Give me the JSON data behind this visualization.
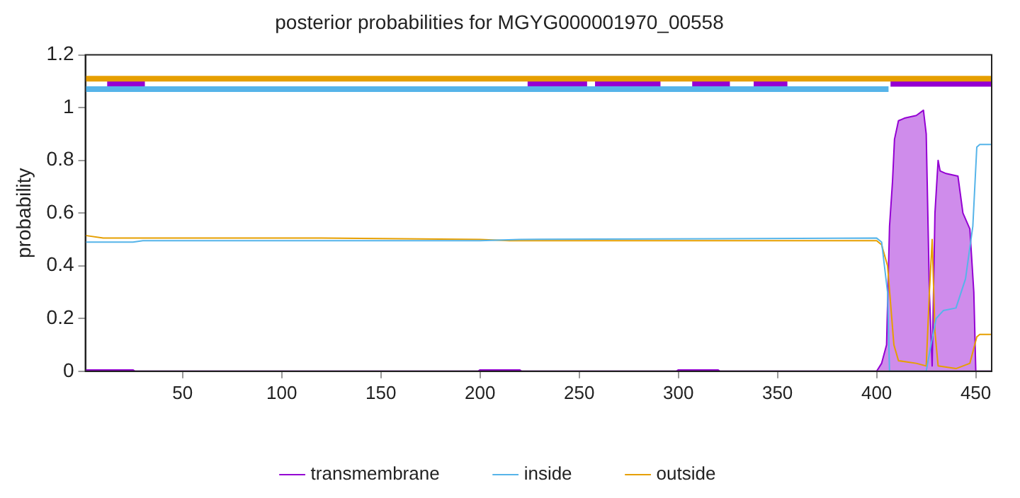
{
  "chart_data": {
    "type": "line",
    "title": "posterior probabilities for MGYG000001970_00558",
    "ylabel": "probability",
    "xlim": [
      1,
      458
    ],
    "xticks": [
      50,
      100,
      150,
      200,
      250,
      300,
      350,
      400,
      450
    ],
    "ylim": [
      0,
      1.2
    ],
    "yticks": [
      0,
      0.2,
      0.4,
      0.6,
      0.8,
      1,
      1.2
    ],
    "grid": false,
    "legend": "bottom",
    "marker": "none",
    "line_style": "solid",
    "series": [
      {
        "name": "transmembrane",
        "type": "area",
        "color": "#9400d3",
        "x": [
          1,
          25,
          26,
          199,
          200,
          220,
          221,
          299,
          300,
          320,
          321,
          400,
          402.5,
          405,
          406.5,
          408,
          409,
          411,
          414,
          420,
          423.6,
          425,
          426.6,
          428,
          429.4,
          431,
          432,
          435,
          441,
          443.5,
          447,
          449,
          450,
          458
        ],
        "values": [
          0.005,
          0.005,
          0,
          0,
          0.005,
          0.005,
          0,
          0,
          0.005,
          0.005,
          0,
          0,
          0.03,
          0.1,
          0.55,
          0.72,
          0.88,
          0.95,
          0.96,
          0.97,
          0.99,
          0.9,
          0.3,
          0.02,
          0.6,
          0.8,
          0.76,
          0.75,
          0.74,
          0.6,
          0.54,
          0.3,
          0,
          0
        ]
      },
      {
        "name": "inside",
        "color": "#56b4e9",
        "x": [
          1,
          25,
          30,
          200,
          220,
          400,
          402.5,
          405.5,
          406.5,
          425,
          427.4,
          430,
          433.6,
          440,
          444.8,
          448.5,
          450.5,
          452,
          458
        ],
        "values": [
          0.49,
          0.49,
          0.495,
          0.495,
          0.5,
          0.505,
          0.49,
          0.3,
          0,
          0,
          0.1,
          0.2,
          0.23,
          0.24,
          0.35,
          0.55,
          0.85,
          0.86,
          0.86
        ]
      },
      {
        "name": "outside",
        "color": "#e69f00",
        "x": [
          1,
          10,
          120,
          200,
          215,
          400,
          402.5,
          405.5,
          408.7,
          411,
          420,
          425,
          426.6,
          428,
          429.4,
          431,
          440,
          447,
          450.5,
          452,
          458
        ],
        "values": [
          0.515,
          0.505,
          0.505,
          0.5,
          0.495,
          0.495,
          0.48,
          0.4,
          0.1,
          0.04,
          0.03,
          0.02,
          0.3,
          0.5,
          0.15,
          0.02,
          0.01,
          0.03,
          0.13,
          0.14,
          0.14
        ]
      },
      {
        "color": "#e69f00",
        "x": [
          1,
          458
        ],
        "values": [
          1.11,
          1.11
        ]
      },
      {
        "color": "#56b4e9",
        "x": [
          1,
          406
        ],
        "values": [
          1.07,
          1.07
        ]
      },
      {
        "color": "#9400d3",
        "x": [
          12,
          31,
          31.5,
          224,
          254,
          254.5,
          258,
          291,
          291.5,
          307,
          326,
          326.5,
          338,
          355,
          355.5,
          407,
          458
        ],
        "values": [
          1.09,
          1.09,
          null,
          1.09,
          1.09,
          null,
          1.09,
          1.09,
          null,
          1.09,
          1.09,
          null,
          1.09,
          1.09,
          null,
          1.09,
          1.09
        ]
      }
    ]
  }
}
